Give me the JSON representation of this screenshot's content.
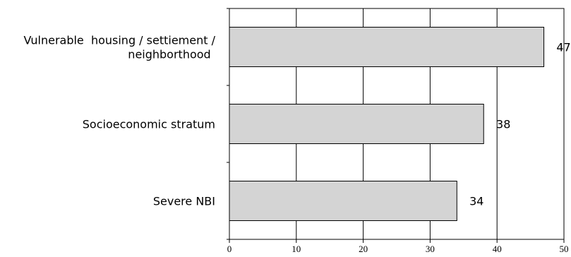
{
  "chart_data": {
    "type": "bar",
    "orientation": "horizontal",
    "categories": [
      [
        "Vulnerable  housing / settiement /",
        "neighborthood"
      ],
      [
        "Socioeconomic stratum"
      ],
      [
        "Severe NBI"
      ]
    ],
    "values": [
      47,
      38,
      34
    ],
    "data_labels": [
      "47",
      "38",
      "34"
    ],
    "xlim": [
      0,
      50
    ],
    "xticks": [
      0,
      10,
      20,
      30,
      40,
      50
    ],
    "title": "",
    "xlabel": "",
    "ylabel": "",
    "grid": "vertical",
    "legend": "none",
    "colors": {
      "bar_fill": "#d4d4d4",
      "bar_stroke": "#000000",
      "grid": "#000000"
    }
  }
}
